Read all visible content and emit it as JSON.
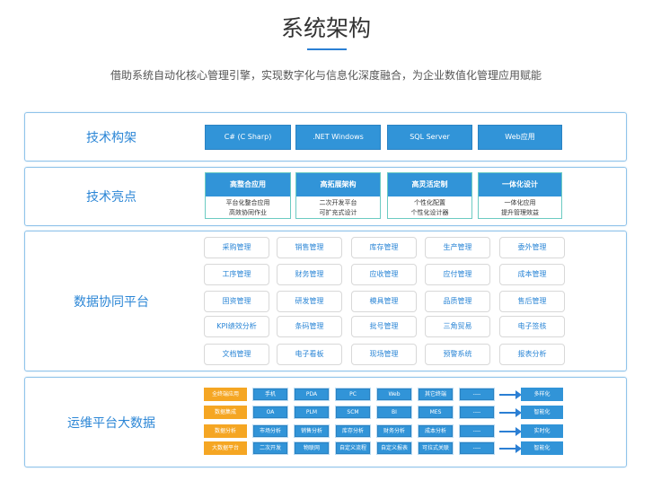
{
  "header": {
    "title": "系统架构",
    "subtitle": "借助系统自动化核心管理引擎，实现数字化与信息化深度融合，为企业数值化管理应用赋能"
  },
  "tech_arch": {
    "label": "技术构架",
    "items": [
      "C#  (C Sharp)",
      ".NET Windows",
      "SQL Server",
      "Web应用"
    ]
  },
  "highlights": {
    "label": "技术亮点",
    "items": [
      {
        "title": "高整合应用",
        "lines": [
          "平台化整合应用",
          "高效协同作业"
        ]
      },
      {
        "title": "高拓展架构",
        "lines": [
          "二次开发平台",
          "可扩充式设计"
        ]
      },
      {
        "title": "高灵活定制",
        "lines": [
          "个性化配置",
          "个性化设计器"
        ]
      },
      {
        "title": "一体化设计",
        "lines": [
          "一体化应用",
          "提升管理效益"
        ]
      }
    ]
  },
  "platform": {
    "label": "数据协同平台",
    "modules": [
      [
        "采购管理",
        "销售管理",
        "库存管理",
        "生产管理",
        "委外管理"
      ],
      [
        "工序管理",
        "财务管理",
        "应收管理",
        "应付管理",
        "成本管理"
      ],
      [
        "固资管理",
        "研发管理",
        "模具管理",
        "品质管理",
        "售后管理"
      ],
      [
        "KPI绩效分析",
        "条码管理",
        "批号管理",
        "三角贸易",
        "电子签核"
      ],
      [
        "文档管理",
        "电子看板",
        "现场管理",
        "预警系统",
        "报表分析"
      ]
    ]
  },
  "bigdata": {
    "label": "运维平台大数据",
    "rows": [
      {
        "category": "全终端应用",
        "cells": [
          "手机",
          "PDA",
          "PC",
          "Web",
          "其它终端",
          "----"
        ],
        "result": "多样化"
      },
      {
        "category": "数据集成",
        "cells": [
          "OA",
          "PLM",
          "SCM",
          "BI",
          "MES",
          "----"
        ],
        "result": "智能化"
      },
      {
        "category": "数据分析",
        "cells": [
          "市场分析",
          "销售分析",
          "库存分析",
          "财务分析",
          "成本分析",
          "----"
        ],
        "result": "实时化"
      },
      {
        "category": "大数据平台",
        "cells": [
          "二次开发",
          "物联网",
          "自定义流程",
          "自定义报表",
          "可拉式关联",
          "----"
        ],
        "result": "智能化"
      }
    ]
  },
  "colors": {
    "accent": "#3194d8",
    "orange": "#f5a623",
    "label": "#2b86d6"
  }
}
